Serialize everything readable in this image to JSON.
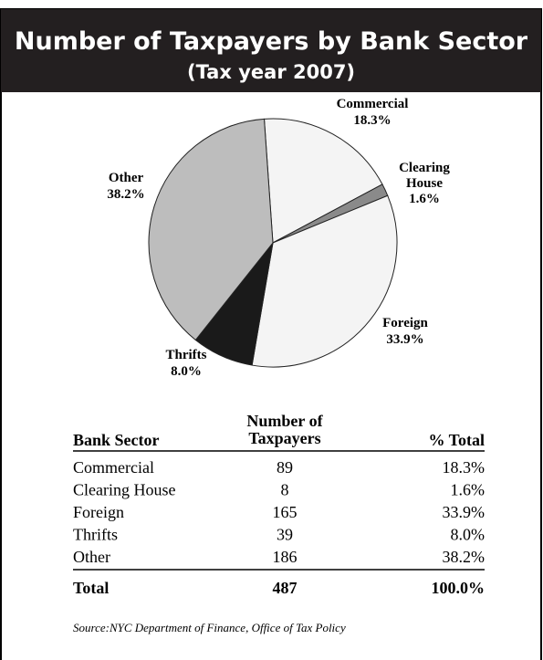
{
  "chart_data": {
    "type": "pie",
    "title": "Number of Taxpayers by Bank Sector",
    "subtitle": "(Tax year 2007)",
    "categories": [
      "Commercial",
      "Clearing House",
      "Foreign",
      "Thrifts",
      "Other"
    ],
    "values": [
      18.3,
      1.6,
      33.9,
      8.0,
      38.2
    ],
    "value_labels": [
      "18.3%",
      "1.6%",
      "33.9%",
      "8.0%",
      "38.2%"
    ],
    "colors": [
      "#f4f4f4",
      "#8a8a8a",
      "#f4f4f4",
      "#1a1a1a",
      "#bdbdbd"
    ]
  },
  "table": {
    "columns": [
      "Bank Sector",
      "Number of Taxpayers",
      "% Total"
    ],
    "counts": [
      89,
      8,
      165,
      39,
      186
    ],
    "total": {
      "label": "Total",
      "count": 487,
      "percent": "100.0%"
    }
  },
  "source": "Source:NYC Department of Finance, Office of Tax Policy"
}
